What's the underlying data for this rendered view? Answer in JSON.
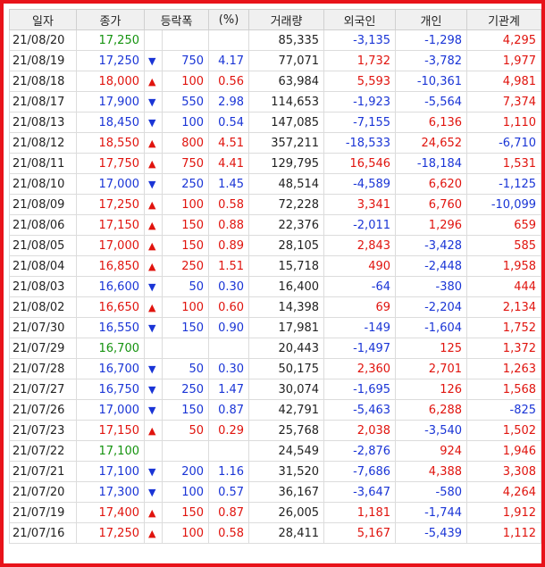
{
  "headers": [
    "일자",
    "종가",
    "등락폭",
    "(%)",
    "거래량",
    "외국인",
    "개인",
    "기관계"
  ],
  "rows": [
    {
      "date": "21/08/20",
      "close": "17,250",
      "dir": "flat",
      "change": "",
      "pct": "",
      "volume": "85,335",
      "foreign": "-3,135",
      "individual": "-1,298",
      "inst": "4,295"
    },
    {
      "date": "21/08/19",
      "close": "17,250",
      "dir": "down",
      "change": "750",
      "pct": "4.17",
      "volume": "77,071",
      "foreign": "1,732",
      "individual": "-3,782",
      "inst": "1,977"
    },
    {
      "date": "21/08/18",
      "close": "18,000",
      "dir": "up",
      "change": "100",
      "pct": "0.56",
      "volume": "63,984",
      "foreign": "5,593",
      "individual": "-10,361",
      "inst": "4,981"
    },
    {
      "date": "21/08/17",
      "close": "17,900",
      "dir": "down",
      "change": "550",
      "pct": "2.98",
      "volume": "114,653",
      "foreign": "-1,923",
      "individual": "-5,564",
      "inst": "7,374"
    },
    {
      "date": "21/08/13",
      "close": "18,450",
      "dir": "down",
      "change": "100",
      "pct": "0.54",
      "volume": "147,085",
      "foreign": "-7,155",
      "individual": "6,136",
      "inst": "1,110"
    },
    {
      "date": "21/08/12",
      "close": "18,550",
      "dir": "up",
      "change": "800",
      "pct": "4.51",
      "volume": "357,211",
      "foreign": "-18,533",
      "individual": "24,652",
      "inst": "-6,710"
    },
    {
      "date": "21/08/11",
      "close": "17,750",
      "dir": "up",
      "change": "750",
      "pct": "4.41",
      "volume": "129,795",
      "foreign": "16,546",
      "individual": "-18,184",
      "inst": "1,531"
    },
    {
      "date": "21/08/10",
      "close": "17,000",
      "dir": "down",
      "change": "250",
      "pct": "1.45",
      "volume": "48,514",
      "foreign": "-4,589",
      "individual": "6,620",
      "inst": "-1,125"
    },
    {
      "date": "21/08/09",
      "close": "17,250",
      "dir": "up",
      "change": "100",
      "pct": "0.58",
      "volume": "72,228",
      "foreign": "3,341",
      "individual": "6,760",
      "inst": "-10,099"
    },
    {
      "date": "21/08/06",
      "close": "17,150",
      "dir": "up",
      "change": "150",
      "pct": "0.88",
      "volume": "22,376",
      "foreign": "-2,011",
      "individual": "1,296",
      "inst": "659"
    },
    {
      "date": "21/08/05",
      "close": "17,000",
      "dir": "up",
      "change": "150",
      "pct": "0.89",
      "volume": "28,105",
      "foreign": "2,843",
      "individual": "-3,428",
      "inst": "585"
    },
    {
      "date": "21/08/04",
      "close": "16,850",
      "dir": "up",
      "change": "250",
      "pct": "1.51",
      "volume": "15,718",
      "foreign": "490",
      "individual": "-2,448",
      "inst": "1,958"
    },
    {
      "date": "21/08/03",
      "close": "16,600",
      "dir": "down",
      "change": "50",
      "pct": "0.30",
      "volume": "16,400",
      "foreign": "-64",
      "individual": "-380",
      "inst": "444"
    },
    {
      "date": "21/08/02",
      "close": "16,650",
      "dir": "up",
      "change": "100",
      "pct": "0.60",
      "volume": "14,398",
      "foreign": "69",
      "individual": "-2,204",
      "inst": "2,134"
    },
    {
      "date": "21/07/30",
      "close": "16,550",
      "dir": "down",
      "change": "150",
      "pct": "0.90",
      "volume": "17,981",
      "foreign": "-149",
      "individual": "-1,604",
      "inst": "1,752"
    },
    {
      "date": "21/07/29",
      "close": "16,700",
      "dir": "flat",
      "change": "",
      "pct": "",
      "volume": "20,443",
      "foreign": "-1,497",
      "individual": "125",
      "inst": "1,372"
    },
    {
      "date": "21/07/28",
      "close": "16,700",
      "dir": "down",
      "change": "50",
      "pct": "0.30",
      "volume": "50,175",
      "foreign": "2,360",
      "individual": "2,701",
      "inst": "1,263"
    },
    {
      "date": "21/07/27",
      "close": "16,750",
      "dir": "down",
      "change": "250",
      "pct": "1.47",
      "volume": "30,074",
      "foreign": "-1,695",
      "individual": "126",
      "inst": "1,568"
    },
    {
      "date": "21/07/26",
      "close": "17,000",
      "dir": "down",
      "change": "150",
      "pct": "0.87",
      "volume": "42,791",
      "foreign": "-5,463",
      "individual": "6,288",
      "inst": "-825"
    },
    {
      "date": "21/07/23",
      "close": "17,150",
      "dir": "up",
      "change": "50",
      "pct": "0.29",
      "volume": "25,768",
      "foreign": "2,038",
      "individual": "-3,540",
      "inst": "1,502"
    },
    {
      "date": "21/07/22",
      "close": "17,100",
      "dir": "flat",
      "change": "",
      "pct": "",
      "volume": "24,549",
      "foreign": "-2,876",
      "individual": "924",
      "inst": "1,946"
    },
    {
      "date": "21/07/21",
      "close": "17,100",
      "dir": "down",
      "change": "200",
      "pct": "1.16",
      "volume": "31,520",
      "foreign": "-7,686",
      "individual": "4,388",
      "inst": "3,308"
    },
    {
      "date": "21/07/20",
      "close": "17,300",
      "dir": "down",
      "change": "100",
      "pct": "0.57",
      "volume": "36,167",
      "foreign": "-3,647",
      "individual": "-580",
      "inst": "4,264"
    },
    {
      "date": "21/07/19",
      "close": "17,400",
      "dir": "up",
      "change": "150",
      "pct": "0.87",
      "volume": "26,005",
      "foreign": "1,181",
      "individual": "-1,744",
      "inst": "1,912"
    },
    {
      "date": "21/07/16",
      "close": "17,250",
      "dir": "up",
      "change": "100",
      "pct": "0.58",
      "volume": "28,411",
      "foreign": "5,167",
      "individual": "-5,439",
      "inst": "1,112"
    }
  ],
  "arrows": {
    "up": "▲",
    "down": "▼",
    "flat": ""
  },
  "colors": {
    "up": "#e0140e",
    "down": "#1a35d6",
    "flat": "#15930f",
    "border": "#e8131a"
  }
}
